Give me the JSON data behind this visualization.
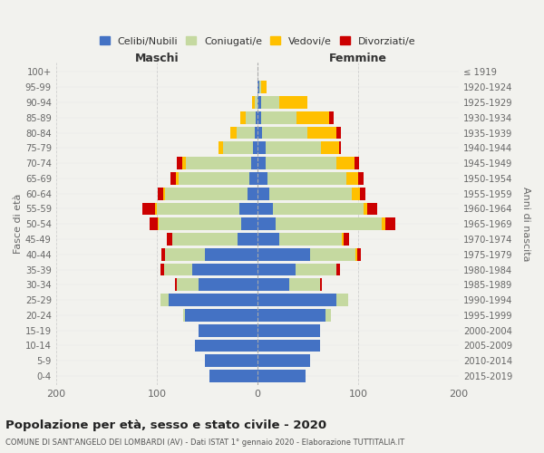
{
  "age_groups": [
    "100+",
    "95-99",
    "90-94",
    "85-89",
    "80-84",
    "75-79",
    "70-74",
    "65-69",
    "60-64",
    "55-59",
    "50-54",
    "45-49",
    "40-44",
    "35-39",
    "30-34",
    "25-29",
    "20-24",
    "15-19",
    "10-14",
    "5-9",
    "0-4"
  ],
  "birth_years": [
    "≤ 1919",
    "1920-1924",
    "1925-1929",
    "1930-1934",
    "1935-1939",
    "1940-1944",
    "1945-1949",
    "1950-1954",
    "1955-1959",
    "1960-1964",
    "1965-1969",
    "1970-1974",
    "1975-1979",
    "1980-1984",
    "1985-1989",
    "1990-1994",
    "1995-1999",
    "2000-2004",
    "2005-2009",
    "2010-2014",
    "2015-2019"
  ],
  "colors": {
    "celibi": "#4472c4",
    "coniugati": "#c5d9a0",
    "vedovi": "#ffc000",
    "divorziati": "#cc0000"
  },
  "maschi": {
    "celibi": [
      0,
      0,
      0,
      2,
      3,
      4,
      6,
      8,
      10,
      18,
      16,
      20,
      52,
      65,
      58,
      88,
      72,
      58,
      62,
      52,
      48
    ],
    "coniugati": [
      0,
      0,
      3,
      10,
      18,
      30,
      65,
      70,
      82,
      82,
      82,
      65,
      40,
      28,
      22,
      8,
      2,
      0,
      0,
      0,
      0
    ],
    "vedovi": [
      0,
      0,
      2,
      5,
      6,
      5,
      4,
      3,
      2,
      2,
      1,
      0,
      0,
      0,
      0,
      0,
      0,
      0,
      0,
      0,
      0
    ],
    "divorziati": [
      0,
      0,
      0,
      0,
      0,
      0,
      5,
      5,
      5,
      12,
      8,
      5,
      3,
      3,
      2,
      0,
      0,
      0,
      0,
      0,
      0
    ]
  },
  "femmine": {
    "celibi": [
      0,
      2,
      4,
      4,
      5,
      8,
      8,
      10,
      12,
      15,
      18,
      22,
      52,
      38,
      32,
      78,
      68,
      62,
      62,
      52,
      48
    ],
    "coniugati": [
      0,
      2,
      18,
      35,
      45,
      55,
      70,
      78,
      82,
      90,
      105,
      62,
      45,
      40,
      30,
      12,
      5,
      0,
      0,
      0,
      0
    ],
    "vedovi": [
      0,
      5,
      28,
      32,
      28,
      18,
      18,
      12,
      8,
      4,
      4,
      2,
      2,
      0,
      0,
      0,
      0,
      0,
      0,
      0,
      0
    ],
    "divorziati": [
      0,
      0,
      0,
      5,
      5,
      2,
      5,
      5,
      5,
      10,
      10,
      5,
      4,
      4,
      2,
      0,
      0,
      0,
      0,
      0,
      0
    ]
  },
  "title": "Popolazione per età, sesso e stato civile - 2020",
  "subtitle": "COMUNE DI SANT'ANGELO DEI LOMBARDI (AV) - Dati ISTAT 1° gennaio 2020 - Elaborazione TUTTITALIA.IT",
  "xlabel_left": "Maschi",
  "xlabel_right": "Femmine",
  "ylabel_left": "Fasce di età",
  "ylabel_right": "Anni di nascita",
  "xlim": 200,
  "legend_labels": [
    "Celibi/Nubili",
    "Coniugati/e",
    "Vedovi/e",
    "Divorziati/e"
  ],
  "background_color": "#f2f2ee"
}
